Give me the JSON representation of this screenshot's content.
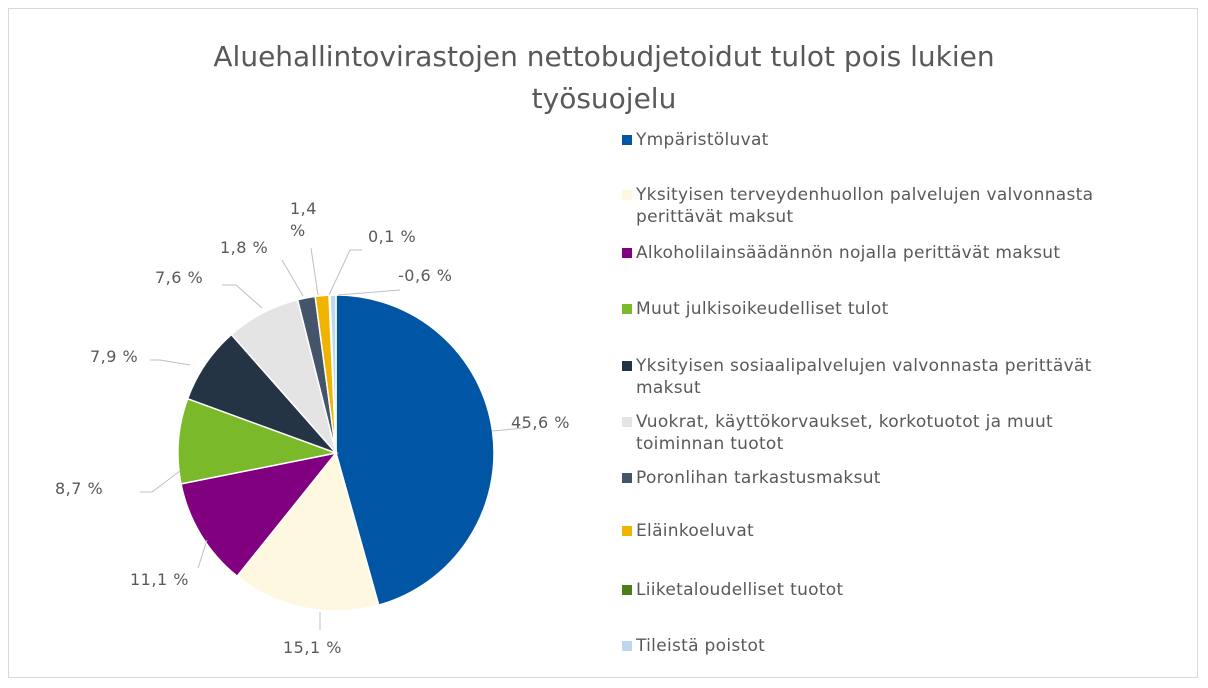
{
  "chart_data": {
    "type": "pie",
    "title": "Aluehallintovirastojen nettobudjetoidut tulot pois lukien työsuojelu",
    "categories": [
      "Ympäristöluvat",
      "Yksityisen terveydenhuollon palvelujen valvonnasta perittävät maksut",
      "Alkoholilainsäädännön nojalla perittävät maksut",
      "Muut julkisoikeudelliset tulot",
      "Yksityisen sosiaalipalvelujen valvonnasta perittävät maksut",
      "Vuokrat, käyttökorvaukset, korkotuotot ja muut toiminnan tuotot",
      "Poronlihan tarkastusmaksut",
      "Eläinkoeluvat",
      "Liiketaloudelliset tuotot",
      "Tileistä poistot"
    ],
    "values": [
      45.6,
      15.1,
      11.1,
      8.7,
      7.9,
      7.6,
      1.8,
      1.4,
      0.1,
      -0.6
    ],
    "value_labels": [
      "45,6 %",
      "15,1 %",
      "11,1 %",
      "8,7 %",
      "7,9 %",
      "7,6 %",
      "1,8 %",
      "1,4 %",
      "0,1 %",
      "-0,6 %"
    ],
    "colors": [
      "#0055a4",
      "#fff8e1",
      "#800080",
      "#7ab929",
      "#243444",
      "#e4e4e4",
      "#44546a",
      "#f0b400",
      "#4a7f1a",
      "#bdd7ee"
    ],
    "legend": "right"
  }
}
